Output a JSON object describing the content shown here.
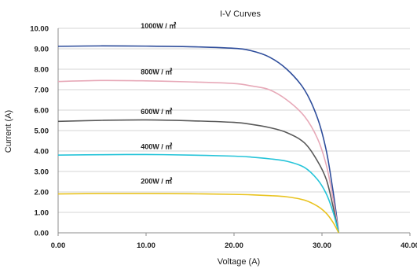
{
  "chart_data": {
    "type": "line",
    "title": "I-V Curves",
    "xlabel": "Voltage (A)",
    "ylabel": "Current (A)",
    "xlim": [
      0,
      40
    ],
    "ylim": [
      0,
      10
    ],
    "xticks": [
      "0.00",
      "10.00",
      "20.00",
      "30.00",
      "40.00"
    ],
    "yticks": [
      "0.00",
      "1.00",
      "2.00",
      "3.00",
      "4.00",
      "5.00",
      "6.00",
      "7.00",
      "8.00",
      "9.00",
      "10.00"
    ],
    "grid": true,
    "series": [
      {
        "name": "1000W / ㎡",
        "color": "#2e4d9b",
        "points": [
          [
            0,
            9.12
          ],
          [
            5,
            9.14
          ],
          [
            10,
            9.13
          ],
          [
            15,
            9.1
          ],
          [
            20,
            9.02
          ],
          [
            22,
            8.9
          ],
          [
            24,
            8.6
          ],
          [
            26,
            8.0
          ],
          [
            28,
            7.0
          ],
          [
            29.5,
            5.6
          ],
          [
            30.5,
            4.0
          ],
          [
            31.2,
            2.2
          ],
          [
            31.6,
            1.0
          ],
          [
            31.9,
            0.0
          ]
        ]
      },
      {
        "name": "800W / ㎡",
        "color": "#e7a9b8",
        "points": [
          [
            0,
            7.4
          ],
          [
            5,
            7.45
          ],
          [
            10,
            7.43
          ],
          [
            15,
            7.38
          ],
          [
            20,
            7.3
          ],
          [
            22,
            7.18
          ],
          [
            24,
            7.0
          ],
          [
            26,
            6.5
          ],
          [
            28,
            5.7
          ],
          [
            29.5,
            4.6
          ],
          [
            30.5,
            3.3
          ],
          [
            31.2,
            1.8
          ],
          [
            31.6,
            0.8
          ],
          [
            31.9,
            0.0
          ]
        ]
      },
      {
        "name": "600W / ㎡",
        "color": "#595959",
        "points": [
          [
            0,
            5.45
          ],
          [
            5,
            5.5
          ],
          [
            10,
            5.52
          ],
          [
            15,
            5.48
          ],
          [
            20,
            5.4
          ],
          [
            22,
            5.3
          ],
          [
            24,
            5.15
          ],
          [
            26,
            4.9
          ],
          [
            28,
            4.4
          ],
          [
            29.5,
            3.5
          ],
          [
            30.5,
            2.6
          ],
          [
            31.2,
            1.4
          ],
          [
            31.6,
            0.6
          ],
          [
            31.9,
            0.0
          ]
        ]
      },
      {
        "name": "400W / ㎡",
        "color": "#26c4d9",
        "points": [
          [
            0,
            3.8
          ],
          [
            5,
            3.82
          ],
          [
            10,
            3.83
          ],
          [
            15,
            3.8
          ],
          [
            20,
            3.75
          ],
          [
            22,
            3.7
          ],
          [
            24,
            3.62
          ],
          [
            26,
            3.5
          ],
          [
            28,
            3.2
          ],
          [
            29.5,
            2.6
          ],
          [
            30.5,
            1.9
          ],
          [
            31.2,
            1.1
          ],
          [
            31.6,
            0.5
          ],
          [
            31.9,
            0.0
          ]
        ]
      },
      {
        "name": "200W / ㎡",
        "color": "#e9c31f",
        "points": [
          [
            0,
            1.9
          ],
          [
            5,
            1.92
          ],
          [
            10,
            1.92
          ],
          [
            15,
            1.91
          ],
          [
            20,
            1.88
          ],
          [
            22,
            1.86
          ],
          [
            24,
            1.82
          ],
          [
            26,
            1.76
          ],
          [
            28,
            1.6
          ],
          [
            29.5,
            1.3
          ],
          [
            30.5,
            0.95
          ],
          [
            31.2,
            0.55
          ],
          [
            31.6,
            0.25
          ],
          [
            31.9,
            0.0
          ]
        ]
      }
    ],
    "annotations": [
      {
        "text": "1000W / ㎡",
        "x": 9.4,
        "y": 10.0
      },
      {
        "text": "800W / ㎡",
        "x": 9.4,
        "y": 7.75
      },
      {
        "text": "600W / ㎡",
        "x": 9.4,
        "y": 5.8
      },
      {
        "text": "400W / ㎡",
        "x": 9.4,
        "y": 4.1
      },
      {
        "text": "200W / ㎡",
        "x": 9.4,
        "y": 2.4
      }
    ]
  }
}
